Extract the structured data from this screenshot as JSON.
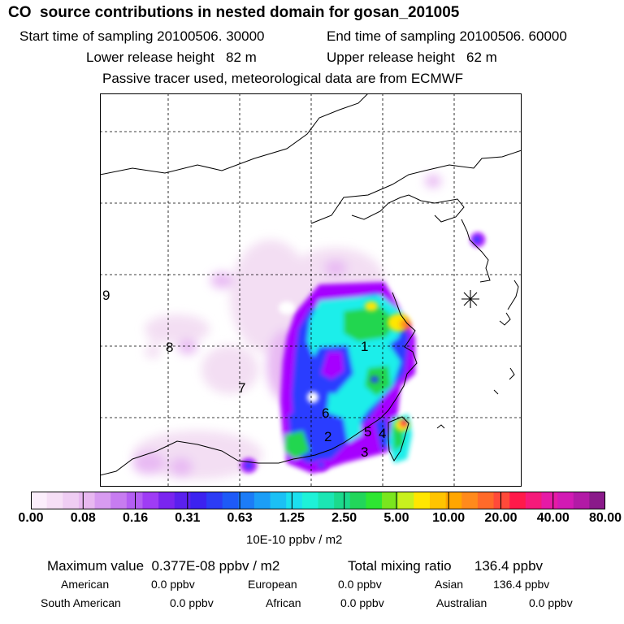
{
  "title": "CO  source contributions in nested domain for gosan_201005",
  "header": {
    "start_label": "Start time of sampling 20100506. 30000",
    "end_label": "End time of sampling 20100506. 60000",
    "lower_label": "Lower release height   82 m",
    "upper_label": "Upper release height   62 m",
    "tracer_label": "Passive tracer used, meteorological data are from ECMWF"
  },
  "map": {
    "region_labels": [
      "1",
      "2",
      "3",
      "4",
      "5",
      "6",
      "7",
      "8",
      "9"
    ],
    "receptor_marker": "asterisk-receptor-icon",
    "colors": {
      "low": "#f2dbf2",
      "pink": "#e6b3f2",
      "violet": "#a600ff",
      "blue": "#2a3cff",
      "cyan": "#1eeeea",
      "green": "#22d650",
      "yellow": "#ffe600",
      "orange": "#ff8c1a",
      "red": "#ff1744",
      "magenta": "#cc0066"
    }
  },
  "colorbar": {
    "colors": [
      "#fbeefb",
      "#f6dff6",
      "#efcdf3",
      "#e8b8f0",
      "#d89bf0",
      "#c77cf0",
      "#b45ef3",
      "#9f3cf5",
      "#7a25ef",
      "#5a20ee",
      "#3c22f0",
      "#2c3cf5",
      "#1e5af7",
      "#1c7cf7",
      "#1c9ef7",
      "#1cc0f5",
      "#1ce0ef",
      "#1ef2d8",
      "#1ce6b4",
      "#1cda8c",
      "#22d65a",
      "#2ee632",
      "#7ae61e",
      "#c8f01e",
      "#ffe600",
      "#ffc400",
      "#ffa600",
      "#ff8a1c",
      "#ff6a2a",
      "#ff4a3a",
      "#ff1a4a",
      "#f51a7a",
      "#e61aa6",
      "#d21ab4",
      "#b21aa6",
      "#8a1a8a"
    ],
    "ticks": [
      "0.00",
      "0.08",
      "0.16",
      "0.31",
      "0.63",
      "1.25",
      "2.50",
      "5.00",
      "10.00",
      "20.00",
      "40.00",
      "80.00"
    ],
    "unit": "10E-10 ppbv / m2"
  },
  "summary": {
    "max_label": "Maximum value  0.377E-08 ppbv / m2",
    "total_label": "Total mixing ratio      136.4 ppbv",
    "rows": [
      [
        "American",
        "0.0 ppbv",
        "European",
        "0.0 ppbv",
        "Asian",
        "136.4 ppbv"
      ],
      [
        "South American",
        "0.0 ppbv",
        "African",
        "0.0 ppbv",
        "Australian",
        "0.0 ppbv"
      ]
    ]
  }
}
